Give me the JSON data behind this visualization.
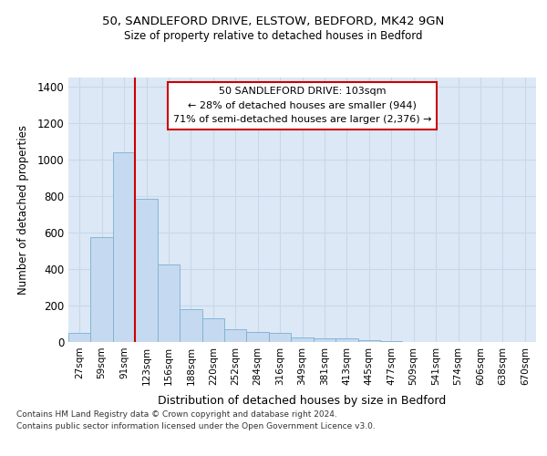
{
  "title1": "50, SANDLEFORD DRIVE, ELSTOW, BEDFORD, MK42 9GN",
  "title2": "Size of property relative to detached houses in Bedford",
  "xlabel": "Distribution of detached houses by size in Bedford",
  "ylabel": "Number of detached properties",
  "categories": [
    "27sqm",
    "59sqm",
    "91sqm",
    "123sqm",
    "156sqm",
    "188sqm",
    "220sqm",
    "252sqm",
    "284sqm",
    "316sqm",
    "349sqm",
    "381sqm",
    "413sqm",
    "445sqm",
    "477sqm",
    "509sqm",
    "541sqm",
    "574sqm",
    "606sqm",
    "638sqm",
    "670sqm"
  ],
  "values": [
    50,
    575,
    1042,
    785,
    425,
    180,
    130,
    68,
    55,
    50,
    25,
    20,
    20,
    12,
    5,
    0,
    0,
    0,
    0,
    0,
    0
  ],
  "bar_color": "#c5d9f0",
  "bar_edge_color": "#7bafd4",
  "grid_color": "#c8d8ea",
  "plot_bg_color": "#dce8f5",
  "fig_bg_color": "#ffffff",
  "vline_color": "#cc0000",
  "vline_x_idx": 2,
  "annotation_text": "50 SANDLEFORD DRIVE: 103sqm\n← 28% of detached houses are smaller (944)\n71% of semi-detached houses are larger (2,376) →",
  "annotation_box_facecolor": "#ffffff",
  "annotation_box_edgecolor": "#cc0000",
  "ylim": [
    0,
    1450
  ],
  "yticks": [
    0,
    200,
    400,
    600,
    800,
    1000,
    1200,
    1400
  ],
  "footer1": "Contains HM Land Registry data © Crown copyright and database right 2024.",
  "footer2": "Contains public sector information licensed under the Open Government Licence v3.0."
}
